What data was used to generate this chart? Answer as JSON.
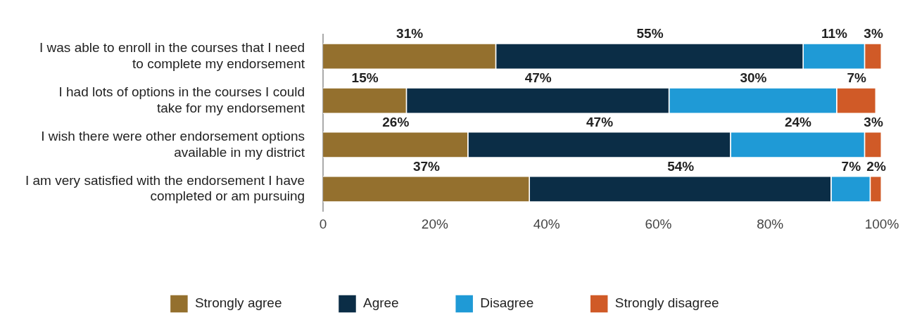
{
  "chart_data": {
    "type": "bar",
    "orientation": "horizontal",
    "stacked": true,
    "categories": [
      "I was able to enroll in the courses that I need to complete my endorsement",
      "I had lots of options in the courses I could take for my endorsement",
      "I wish there were other endorsement options available in my district",
      "I am very satisfied with the endorsement I have completed or am pursuing"
    ],
    "series": [
      {
        "name": "Strongly agree",
        "color": "#94702e",
        "values": [
          31,
          15,
          26,
          37
        ],
        "value_labels": [
          "31%",
          "15%",
          "26%",
          "37%"
        ]
      },
      {
        "name": "Agree",
        "color": "#0b2d46",
        "values": [
          55,
          47,
          47,
          54
        ],
        "value_labels": [
          "55%",
          "47%",
          "47%",
          "54%"
        ]
      },
      {
        "name": "Disagree",
        "color": "#1f9ad6",
        "values": [
          11,
          30,
          24,
          7
        ],
        "value_labels": [
          "11%",
          "30%",
          "24%",
          "7%"
        ]
      },
      {
        "name": "Strongly disagree",
        "color": "#d05a27",
        "values": [
          3,
          7,
          3,
          2
        ],
        "value_labels": [
          "3%",
          "7%",
          "3%",
          "2%"
        ]
      }
    ],
    "xlim": [
      0,
      100
    ],
    "xticks": [
      0,
      {
        "value": 20,
        "label": "20%"
      },
      {
        "value": 40,
        "label": "40%"
      },
      {
        "value": 60,
        "label": "60%"
      },
      {
        "value": 80,
        "label": "80%"
      },
      {
        "value": 100,
        "label": "100%"
      }
    ],
    "grid": false,
    "legend": "bottom"
  }
}
